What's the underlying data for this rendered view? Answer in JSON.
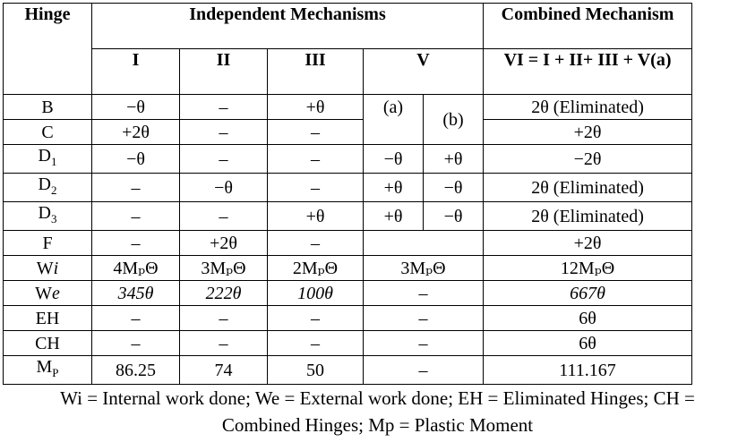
{
  "header": {
    "hinge": "Hinge",
    "independent": "Independent Mechanisms",
    "combined": "Combined Mechanism",
    "cols": [
      "I",
      "II",
      "III",
      "V"
    ],
    "combined_formula": "VI = I + II+ III + V(a)"
  },
  "rows": [
    {
      "label": "B",
      "sub": "",
      "c1": "−θ",
      "c2": "–",
      "c3": "+θ",
      "va": "(a)",
      "vb": "(b)",
      "comb": "2θ (Eliminated)"
    },
    {
      "label": "C",
      "sub": "",
      "c1": "+2θ",
      "c2": "–",
      "c3": "–",
      "comb": "+2θ"
    },
    {
      "label": "D",
      "sub": "1",
      "c1": "−θ",
      "c2": "–",
      "c3": "–",
      "va": "−θ",
      "vb": "+θ",
      "comb": "−2θ"
    },
    {
      "label": "D",
      "sub": "2",
      "c1": "–",
      "c2": "−θ",
      "c3": "–",
      "va": "+θ",
      "vb": "−θ",
      "comb": "2θ (Eliminated)"
    },
    {
      "label": "D",
      "sub": "3",
      "c1": "–",
      "c2": "–",
      "c3": "+θ",
      "va": "+θ",
      "vb": "−θ",
      "comb": "2θ (Eliminated)"
    },
    {
      "label": "F",
      "sub": "",
      "c1": "–",
      "c2": "+2θ",
      "c3": "–",
      "v": "",
      "comb": "+2θ"
    },
    {
      "label": "W",
      "label_it": "i",
      "c1": "4MₚΘ",
      "c2": "3MₚΘ",
      "c3": "2MₚΘ",
      "v": "3MₚΘ",
      "comb": "12MₚΘ"
    },
    {
      "label": "W",
      "label_it": "e",
      "c1": "345θ",
      "c2": "222θ",
      "c3": "100θ",
      "v": "–",
      "comb": "667θ",
      "italic": true
    },
    {
      "label": "EH",
      "sub": "",
      "c1": "–",
      "c2": "–",
      "c3": "–",
      "v": "–",
      "comb": "6θ"
    },
    {
      "label": "CH",
      "sub": "",
      "c1": "–",
      "c2": "–",
      "c3": "–",
      "v": "–",
      "comb": "6θ"
    },
    {
      "label": "M",
      "sub": "P",
      "c1": "86.25",
      "c2": "74",
      "c3": "50",
      "v": "–",
      "comb": "111.167"
    }
  ],
  "caption": {
    "line1": "Wi = Internal work done; We = External work done; EH = Eliminated Hinges; CH =",
    "line2": "Combined Hinges; Mp = Plastic Moment"
  }
}
